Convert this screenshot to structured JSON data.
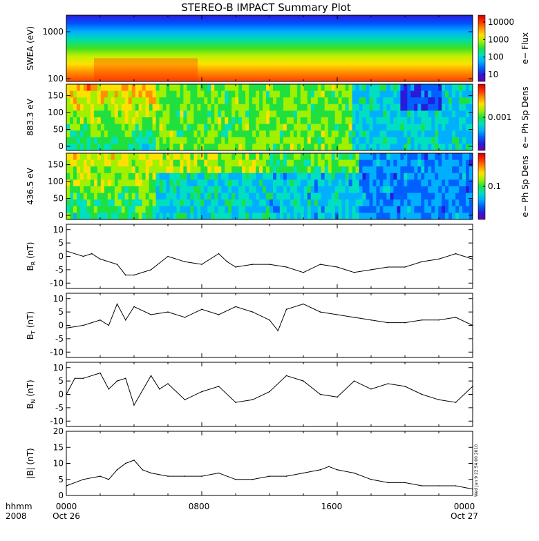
{
  "title": "STEREO-B IMPACT Summary Plot",
  "footer": {
    "left_top": "hhmm",
    "left_bottom": "2008",
    "x_ticks": [
      "0000",
      "0800",
      "1600",
      "0000"
    ],
    "x_dates": [
      "Oct 26",
      "Oct 27"
    ],
    "timestamp": "Wed Jun  9 22:54:00 2010"
  },
  "chart_data": [
    {
      "type": "heatmap",
      "panel": "swea",
      "ylabel": "SWEA (eV)",
      "yscale": "log",
      "ylim": [
        100,
        1800
      ],
      "yticks": [
        "1000",
        "100"
      ],
      "colorbar": {
        "label": "e− Flux",
        "ticks": [
          "10000",
          "1000",
          "100",
          "10"
        ],
        "scale": "log",
        "range": [
          5,
          20000
        ]
      },
      "x_hours": [
        0,
        24
      ],
      "description_bands": [
        {
          "energy_ev": 1600,
          "level": "blue"
        },
        {
          "energy_ev": 1000,
          "level": "cyan"
        },
        {
          "energy_ev": 600,
          "level": "green"
        },
        {
          "energy_ev": 300,
          "level": "yellow"
        },
        {
          "energy_ev": 150,
          "level": "orange"
        }
      ]
    },
    {
      "type": "heatmap",
      "panel": "pad883",
      "ylabel": "883.3 eV",
      "ylim": [
        0,
        180
      ],
      "yticks": [
        "150",
        "100",
        "50",
        "0"
      ],
      "colorbar": {
        "label": "e− Ph Sp Dens",
        "ticks": [
          "0.001"
        ]
      },
      "x_hours": [
        0,
        24
      ]
    },
    {
      "type": "heatmap",
      "panel": "pad436",
      "ylabel": "436.5 eV",
      "ylim": [
        0,
        180
      ],
      "yticks": [
        "150",
        "100",
        "50",
        "0"
      ],
      "colorbar": {
        "label": "e− Ph Sp Dens",
        "ticks": [
          "0.1"
        ]
      },
      "x_hours": [
        0,
        24
      ]
    },
    {
      "type": "line",
      "panel": "br",
      "ylabel_main": "B",
      "ylabel_sub": "R",
      "ylabel_unit": " (nT)",
      "ylim": [
        -12,
        12
      ],
      "yticks": [
        "10",
        "5",
        "0",
        "-5",
        "-10"
      ],
      "x_hours": [
        0,
        1,
        1.5,
        2,
        3,
        3.5,
        4,
        5,
        6,
        7,
        8,
        9,
        9.5,
        10,
        11,
        12,
        13,
        14,
        15,
        16,
        17,
        18,
        19,
        20,
        21,
        22,
        23,
        24
      ],
      "y": [
        2,
        0,
        1,
        -1,
        -3,
        -7,
        -7,
        -5,
        0,
        -2,
        -3,
        1,
        -2,
        -4,
        -3,
        -3,
        -4,
        -6,
        -3,
        -4,
        -6,
        -5,
        -4,
        -4,
        -2,
        -1,
        1,
        -1
      ]
    },
    {
      "type": "line",
      "panel": "bt",
      "ylabel_main": "B",
      "ylabel_sub": "T",
      "ylabel_unit": " (nT)",
      "ylim": [
        -12,
        12
      ],
      "yticks": [
        "10",
        "5",
        "0",
        "-5",
        "-10"
      ],
      "x_hours": [
        0,
        1,
        2,
        2.5,
        3,
        3.5,
        4,
        5,
        6,
        7,
        8,
        9,
        10,
        11,
        12,
        12.5,
        13,
        14,
        15,
        16,
        17,
        18,
        19,
        20,
        21,
        22,
        23,
        24
      ],
      "y": [
        -1,
        0,
        2,
        0,
        8,
        2,
        7,
        4,
        5,
        3,
        6,
        4,
        7,
        5,
        2,
        -2,
        6,
        8,
        5,
        4,
        3,
        2,
        1,
        1,
        2,
        2,
        3,
        0
      ]
    },
    {
      "type": "line",
      "panel": "bn",
      "ylabel_main": "B",
      "ylabel_sub": "N",
      "ylabel_unit": " (nT)",
      "ylim": [
        -12,
        12
      ],
      "yticks": [
        "10",
        "5",
        "0",
        "-5",
        "-10"
      ],
      "x_hours": [
        0,
        0.5,
        1,
        2,
        2.5,
        3,
        3.5,
        4,
        5,
        5.5,
        6,
        7,
        8,
        9,
        10,
        11,
        12,
        13,
        14,
        15,
        16,
        17,
        18,
        19,
        20,
        21,
        22,
        23,
        24
      ],
      "y": [
        0,
        6,
        6,
        8,
        2,
        5,
        6,
        -4,
        7,
        2,
        4,
        -2,
        1,
        3,
        -3,
        -2,
        1,
        7,
        5,
        0,
        -1,
        5,
        2,
        4,
        3,
        0,
        -2,
        -3,
        3
      ]
    },
    {
      "type": "line",
      "panel": "bmag",
      "ylabel_main": "|B|",
      "ylabel_sub": "",
      "ylabel_unit": " (nT)",
      "ylim": [
        0,
        20
      ],
      "yticks": [
        "20",
        "15",
        "10",
        "5",
        "0"
      ],
      "x_hours": [
        0,
        1,
        2,
        2.5,
        3,
        3.5,
        4,
        4.5,
        5,
        6,
        7,
        8,
        9,
        10,
        11,
        12,
        13,
        14,
        15,
        15.5,
        16,
        17,
        18,
        19,
        20,
        21,
        22,
        23,
        24
      ],
      "y": [
        3,
        5,
        6,
        5,
        8,
        10,
        11,
        8,
        7,
        6,
        6,
        6,
        7,
        5,
        5,
        6,
        6,
        7,
        8,
        9,
        8,
        7,
        5,
        4,
        4,
        3,
        3,
        3,
        2
      ]
    }
  ]
}
